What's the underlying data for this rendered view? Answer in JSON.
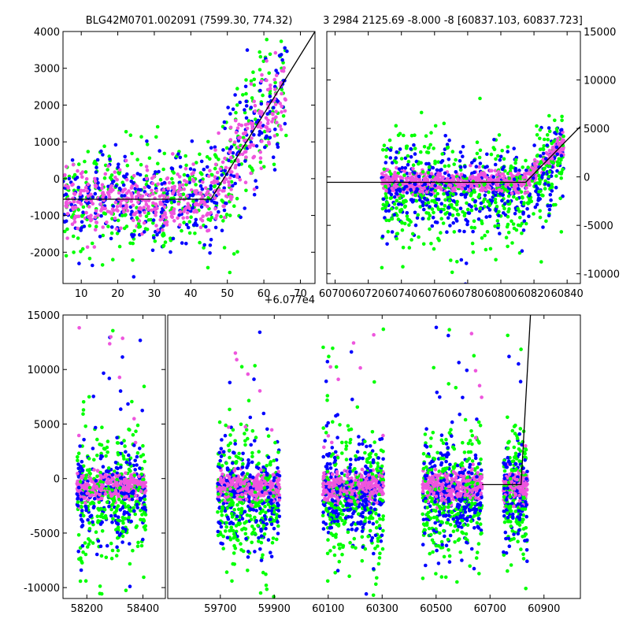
{
  "titles": {
    "left": "BLG42M0701.002091 (7599.30, 774.32)",
    "right": "3 2984 2125.69 -8.000 -8 [60837.103, 60837.723]"
  },
  "colors": {
    "green": "#00ff00",
    "blue": "#0000ff",
    "pink": "#ee55dd",
    "fit": "#000000"
  },
  "chart_data": [
    {
      "type": "scatter",
      "panel": "top-left-zoom",
      "xlim": [
        5,
        74
      ],
      "ylim": [
        -2850,
        4000
      ],
      "x_offset_label": "+6.077e4",
      "xticks": [
        "10",
        "20",
        "30",
        "40",
        "50",
        "60",
        "70"
      ],
      "yticks": [
        "-2000",
        "-1000",
        "0",
        "1000",
        "2000",
        "3000",
        "4000"
      ],
      "fit_line": {
        "x": [
          5,
          45.5,
          74
        ],
        "y": [
          -560,
          -560,
          4000
        ]
      }
    },
    {
      "type": "scatter",
      "panel": "top-right",
      "xlim": [
        60695,
        60848
      ],
      "ylim": [
        -11000,
        15000
      ],
      "xticks": [
        "60700",
        "60720",
        "60740",
        "60760",
        "60780",
        "60800",
        "60820",
        "60840"
      ],
      "yticks": [
        "-10000",
        "-5000",
        "0",
        "5000",
        "10000",
        "15000"
      ],
      "fit_line": {
        "x": [
          60695,
          60815,
          60848
        ],
        "y": [
          -560,
          -560,
          5200
        ]
      }
    },
    {
      "type": "scatter",
      "panel": "bottom-full",
      "segments": [
        {
          "xlim": [
            58115,
            58480
          ],
          "xticks": [
            "58200",
            "58400"
          ]
        },
        {
          "xlim": [
            59505,
            61035
          ],
          "xticks": [
            "59700",
            "59900",
            "60100",
            "60300",
            "60500",
            "60700",
            "60900"
          ]
        }
      ],
      "ylim": [
        -11000,
        15000
      ],
      "yticks": [
        "-10000",
        "-5000",
        "0",
        "5000",
        "10000",
        "15000"
      ],
      "fit_line": {
        "x": [
          60670,
          60815,
          60850
        ],
        "y": [
          -560,
          -560,
          15000
        ]
      }
    }
  ]
}
